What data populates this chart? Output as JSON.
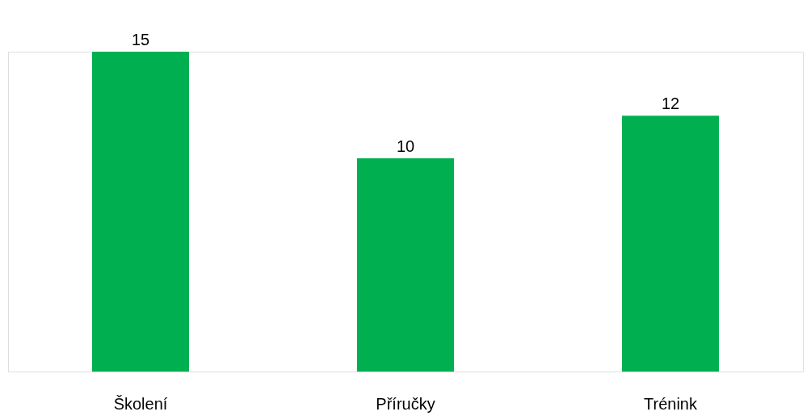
{
  "chart_data": {
    "type": "bar",
    "categories": [
      "Školení",
      "Příručky",
      "Trénink"
    ],
    "values": [
      15,
      10,
      12
    ],
    "color": "#00b050",
    "data_labels": true
  }
}
